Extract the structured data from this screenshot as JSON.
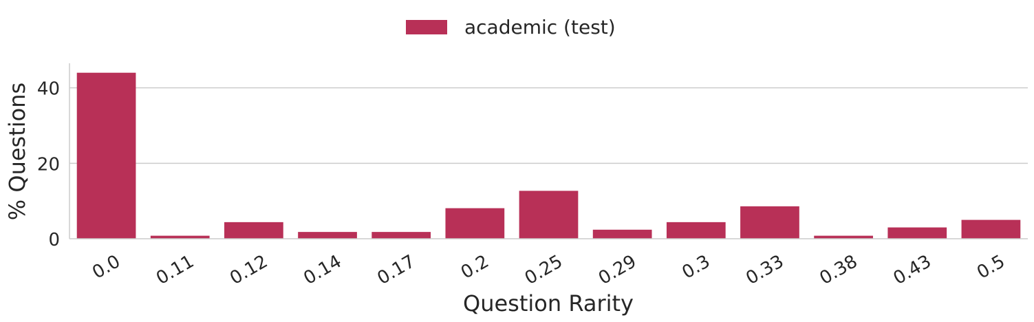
{
  "chart_data": {
    "type": "bar",
    "title": "",
    "xlabel": "Question Rarity",
    "ylabel": "% Questions",
    "categories": [
      "0.0",
      "0.11",
      "0.12",
      "0.14",
      "0.17",
      "0.2",
      "0.25",
      "0.29",
      "0.3",
      "0.33",
      "0.38",
      "0.43",
      "0.5"
    ],
    "series": [
      {
        "name": "academic (test)",
        "color": "#b83057",
        "values": [
          44.0,
          0.8,
          4.4,
          1.8,
          1.8,
          8.1,
          12.7,
          2.4,
          4.4,
          8.6,
          0.8,
          3.0,
          5.0
        ]
      }
    ],
    "yticks": [
      0,
      20,
      40
    ],
    "ylim": [
      0,
      46.5
    ],
    "grid": "horizontal",
    "legend_position": "top-center"
  }
}
